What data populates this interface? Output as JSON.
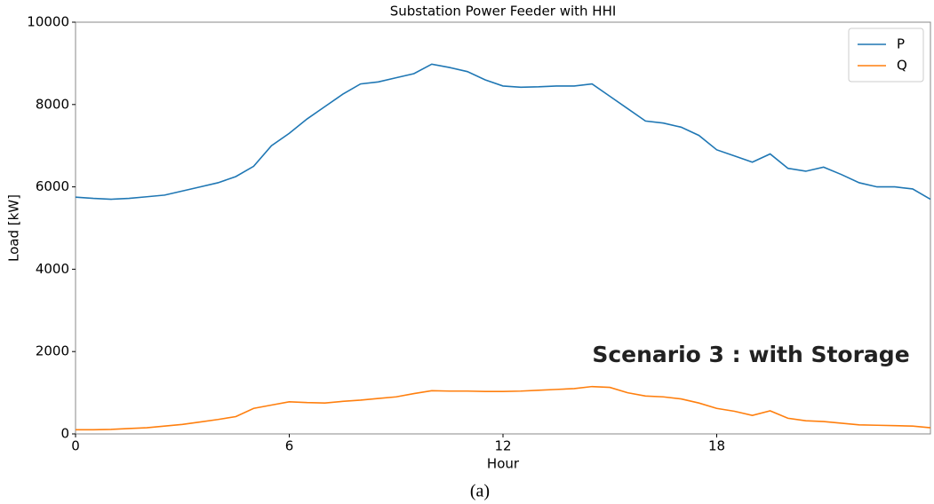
{
  "chart_data": {
    "type": "line",
    "title": "Substation Power Feeder with HHI",
    "xlabel": "Hour",
    "ylabel": "Load [kW]",
    "annotation": "Scenario 3 : with Storage",
    "caption": "(a)",
    "x": [
      0,
      0.5,
      1,
      1.5,
      2,
      2.5,
      3,
      3.5,
      4,
      4.5,
      5,
      5.5,
      6,
      6.5,
      7,
      7.5,
      8,
      8.5,
      9,
      9.5,
      10,
      10.5,
      11,
      11.5,
      12,
      12.5,
      13,
      13.5,
      14,
      14.5,
      15,
      15.5,
      16,
      16.5,
      17,
      17.5,
      18,
      18.5,
      19,
      19.5,
      20,
      20.5,
      21,
      21.5,
      22,
      22.5,
      23,
      23.5,
      24
    ],
    "series": [
      {
        "name": "P",
        "color": "#1f77b4",
        "values": [
          5750,
          5720,
          5700,
          5720,
          5760,
          5800,
          5900,
          6000,
          6100,
          6250,
          6500,
          7000,
          7300,
          7650,
          7950,
          8250,
          8500,
          8550,
          8650,
          8750,
          8980,
          8900,
          8800,
          8600,
          8450,
          8420,
          8430,
          8450,
          8450,
          8500,
          8200,
          7900,
          7600,
          7550,
          7450,
          7250,
          6900,
          6750,
          6600,
          6800,
          6450,
          6380,
          6480,
          6300,
          6100,
          6000,
          6000,
          5950,
          5700
        ]
      },
      {
        "name": "Q",
        "color": "#ff7f0e",
        "values": [
          100,
          100,
          110,
          130,
          150,
          190,
          230,
          290,
          350,
          420,
          620,
          700,
          780,
          760,
          750,
          790,
          820,
          860,
          900,
          980,
          1050,
          1040,
          1040,
          1030,
          1030,
          1040,
          1060,
          1080,
          1100,
          1150,
          1130,
          1000,
          920,
          900,
          850,
          750,
          620,
          550,
          450,
          560,
          380,
          320,
          300,
          260,
          220,
          210,
          200,
          190,
          150
        ]
      }
    ],
    "xlim": [
      0,
      24
    ],
    "xticks": [
      0,
      6,
      12,
      18
    ],
    "ylim": [
      0,
      10000
    ],
    "yticks": [
      0,
      2000,
      4000,
      6000,
      8000,
      10000
    ],
    "legend": "upper right"
  }
}
